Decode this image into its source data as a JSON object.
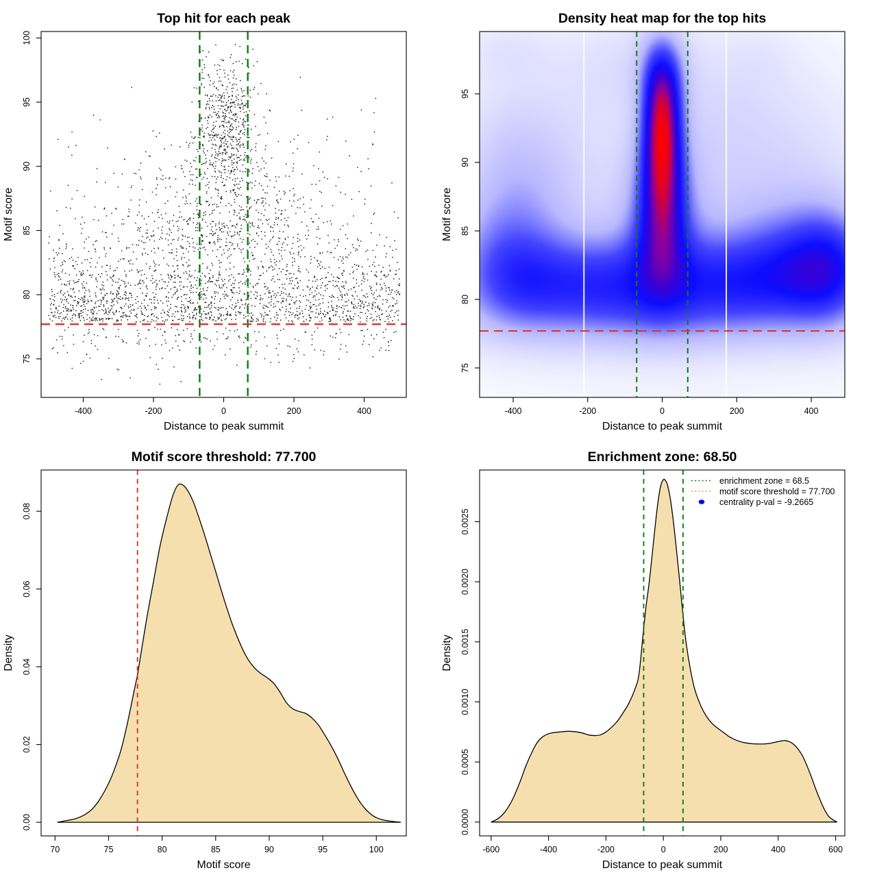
{
  "colors": {
    "red": "#e03228",
    "green": "#0f7b0f",
    "legend_red": "#f28b7d",
    "blue": "#0909e8",
    "wheat": "#f6dfae",
    "ink": "#000000"
  },
  "chart_data": [
    {
      "id": "top-hit-scatter",
      "type": "scatter",
      "title": "Top hit for each peak",
      "xlabel": "Distance to peak summit",
      "ylabel": "Motif score",
      "xlim": [
        -520,
        520
      ],
      "ylim": [
        72.0,
        100.5
      ],
      "xticks": [
        -400,
        -200,
        0,
        200,
        400
      ],
      "xtick_labels": [
        "-400",
        "-200",
        "0",
        "200",
        "400"
      ],
      "yticks": [
        75,
        80,
        85,
        90,
        95,
        100
      ],
      "ytick_labels": [
        "75",
        "80",
        "85",
        "90",
        "95",
        "100"
      ],
      "hline": {
        "value": 77.7,
        "color_key": "red"
      },
      "vlines": {
        "values": [
          -68.5,
          68.5
        ],
        "color_key": "green"
      },
      "points": {
        "seed": 1337,
        "color": "#000000",
        "clusters": [
          {
            "name": "background",
            "n": 1950,
            "x": {
              "dist": "uniform",
              "min": -500,
              "max": 500
            },
            "y": {
              "dist": "foldnormal",
              "base": 77.9,
              "scale": 3.3,
              "dir": 1,
              "clip_max": 99.8
            }
          },
          {
            "name": "central-cone",
            "n": 650,
            "x": {
              "dist": "normal",
              "mean": 0,
              "sd": 150,
              "clip_min": -500,
              "clip_max": 500
            },
            "y": {
              "dist": "foldnormal",
              "base": 83.5,
              "scale": 4.5,
              "dir": 1,
              "clip_max": 99.8
            }
          },
          {
            "name": "summit-core",
            "n": 520,
            "x": {
              "dist": "normal",
              "mean": 8,
              "sd": 42,
              "clip_min": -190,
              "clip_max": 200
            },
            "y": {
              "dist": "normal",
              "mean": 93.3,
              "sd": 2.7,
              "clip_min": 85,
              "clip_max": 99.6
            }
          },
          {
            "name": "below-threshold",
            "n": 200,
            "x": {
              "dist": "uniform",
              "min": -490,
              "max": 500
            },
            "y": {
              "dist": "foldnormal",
              "base": 77.5,
              "scale": 1.5,
              "dir": -1,
              "clip_min": 72.6
            }
          },
          {
            "name": "high-wings",
            "n": 70,
            "x": {
              "dist": "uniform",
              "min": -500,
              "max": 500
            },
            "y": {
              "dist": "normal",
              "mean": 90.5,
              "sd": 2.8,
              "clip_min": 86,
              "clip_max": 97
            }
          }
        ]
      }
    },
    {
      "id": "top-hit-heatmap",
      "type": "heatmap",
      "title": "Density heat map for the top hits",
      "xlabel": "Distance to peak summit",
      "ylabel": "Motif score",
      "xlim": [
        -490,
        490
      ],
      "ylim": [
        72.85,
        99.55
      ],
      "xticks": [
        -400,
        -200,
        0,
        200,
        400
      ],
      "xtick_labels": [
        "-400",
        "-200",
        "0",
        "200",
        "400"
      ],
      "yticks": [
        75,
        80,
        85,
        90,
        95
      ],
      "ytick_labels": [
        "75",
        "80",
        "85",
        "90",
        "95"
      ],
      "hline": {
        "value": 77.7,
        "color_key": "red"
      },
      "vlines": {
        "values": [
          -68.5,
          68.5
        ],
        "color_key": "green"
      },
      "white_gridlines": [
        -210,
        172
      ],
      "gamma": 0.75,
      "colormap": [
        [
          0,
          "#ffffff"
        ],
        [
          0.28,
          "#b8b8ff"
        ],
        [
          0.45,
          "#4646ff"
        ],
        [
          0.6,
          "#0d0dff"
        ],
        [
          0.72,
          "#3c00d2"
        ],
        [
          0.82,
          "#8800a0"
        ],
        [
          0.9,
          "#d2003c"
        ],
        [
          1,
          "#ff0000"
        ]
      ],
      "kernels": [
        {
          "x": -380,
          "y": 81.3,
          "sx": 110,
          "sy": 2.4,
          "w": 0.75
        },
        {
          "x": -180,
          "y": 81.2,
          "sx": 110,
          "sy": 2.2,
          "w": 0.6
        },
        {
          "x": 0,
          "y": 81.5,
          "sx": 120,
          "sy": 2.4,
          "w": 0.55
        },
        {
          "x": 190,
          "y": 81.3,
          "sx": 110,
          "sy": 2.2,
          "w": 0.6
        },
        {
          "x": 380,
          "y": 81.7,
          "sx": 110,
          "sy": 2.4,
          "w": 0.7
        },
        {
          "x": 460,
          "y": 82.3,
          "sx": 70,
          "sy": 2.6,
          "w": 0.45
        },
        {
          "x": 0,
          "y": 78.8,
          "sx": 300,
          "sy": 1.8,
          "w": 0.28
        },
        {
          "x": -430,
          "y": 84.5,
          "sx": 90,
          "sy": 3,
          "w": 0.3
        },
        {
          "x": -350,
          "y": 87,
          "sx": 100,
          "sy": 3.5,
          "w": 0.22
        },
        {
          "x": -420,
          "y": 91,
          "sx": 80,
          "sy": 3,
          "w": 0.12
        },
        {
          "x": 300,
          "y": 84,
          "sx": 120,
          "sy": 3,
          "w": 0.25
        },
        {
          "x": 430,
          "y": 83,
          "sx": 80,
          "sy": 3,
          "w": 0.3
        },
        {
          "x": 0,
          "y": 84.5,
          "sx": 42,
          "sy": 3,
          "w": 0.6
        },
        {
          "x": 0,
          "y": 88,
          "sx": 38,
          "sy": 3,
          "w": 0.85
        },
        {
          "x": 0,
          "y": 91,
          "sx": 34,
          "sy": 2.6,
          "w": 1.0
        },
        {
          "x": 0,
          "y": 93.6,
          "sx": 33,
          "sy": 2.4,
          "w": 1.15
        },
        {
          "x": 0,
          "y": 95.8,
          "sx": 36,
          "sy": 1.8,
          "w": 0.55
        },
        {
          "x": 0,
          "y": 97.8,
          "sx": 42,
          "sy": 1.8,
          "w": 0.3
        },
        {
          "x": -40,
          "y": 86,
          "sx": 60,
          "sy": 4,
          "w": 0.3
        },
        {
          "x": 40,
          "y": 86,
          "sx": 60,
          "sy": 4,
          "w": 0.3
        },
        {
          "x": -80,
          "y": 97,
          "sx": 120,
          "sy": 2.5,
          "w": 0.12
        },
        {
          "x": 150,
          "y": 93,
          "sx": 120,
          "sy": 4,
          "w": 0.12
        },
        {
          "x": -300,
          "y": 93,
          "sx": 120,
          "sy": 4,
          "w": 0.08
        },
        {
          "x": 350,
          "y": 90,
          "sx": 130,
          "sy": 5,
          "w": 0.1
        },
        {
          "x": -420,
          "y": 98,
          "sx": 80,
          "sy": 1.6,
          "w": 0.1
        },
        {
          "x": 260,
          "y": 97.5,
          "sx": 60,
          "sy": 1.5,
          "w": 0.05
        },
        {
          "x": 0,
          "y": 83,
          "sx": 400,
          "sy": 6,
          "w": 0.12
        },
        {
          "x": 0,
          "y": 90,
          "sx": 420,
          "sy": 8,
          "w": 0.06
        }
      ]
    },
    {
      "id": "motif-score-density",
      "type": "area",
      "title": "Motif score threshold: 77.700",
      "xlabel": "Motif score",
      "ylabel": "Density",
      "xlim": [
        68.7,
        102.8
      ],
      "ylim": [
        -0.0035,
        0.0906
      ],
      "xticks": [
        70,
        75,
        80,
        85,
        90,
        95,
        100
      ],
      "xtick_labels": [
        "70",
        "75",
        "80",
        "85",
        "90",
        "95",
        "100"
      ],
      "yticks": [
        0,
        0.02,
        0.04,
        0.06,
        0.08
      ],
      "ytick_labels": [
        "0.00",
        "0.02",
        "0.04",
        "0.06",
        "0.08"
      ],
      "vlines": {
        "values": [
          77.7
        ],
        "color_key": "red"
      },
      "fill_key": "wheat",
      "curve": [
        [
          70.2,
          0
        ],
        [
          71,
          0.0004
        ],
        [
          72,
          0.001
        ],
        [
          72.8,
          0.002
        ],
        [
          73.5,
          0.0035
        ],
        [
          74.2,
          0.006
        ],
        [
          75,
          0.01
        ],
        [
          75.6,
          0.014
        ],
        [
          76.2,
          0.019
        ],
        [
          76.8,
          0.026
        ],
        [
          77.4,
          0.034
        ],
        [
          77.7,
          0.038
        ],
        [
          78,
          0.043
        ],
        [
          78.6,
          0.053
        ],
        [
          79.2,
          0.062
        ],
        [
          79.8,
          0.071
        ],
        [
          80.4,
          0.078
        ],
        [
          81,
          0.084
        ],
        [
          81.5,
          0.0868
        ],
        [
          82,
          0.0866
        ],
        [
          82.5,
          0.0848
        ],
        [
          83,
          0.0818
        ],
        [
          83.6,
          0.077
        ],
        [
          84.2,
          0.0718
        ],
        [
          85,
          0.0645
        ],
        [
          85.8,
          0.0572
        ],
        [
          86.6,
          0.0506
        ],
        [
          87.4,
          0.0452
        ],
        [
          88,
          0.042
        ],
        [
          88.6,
          0.0398
        ],
        [
          89.2,
          0.0383
        ],
        [
          89.8,
          0.0372
        ],
        [
          90.4,
          0.0358
        ],
        [
          91,
          0.0335
        ],
        [
          91.6,
          0.0308
        ],
        [
          92.2,
          0.0292
        ],
        [
          92.8,
          0.0285
        ],
        [
          93.4,
          0.028
        ],
        [
          94,
          0.0268
        ],
        [
          94.6,
          0.025
        ],
        [
          95.2,
          0.0224
        ],
        [
          95.8,
          0.0196
        ],
        [
          96.4,
          0.0164
        ],
        [
          97,
          0.0128
        ],
        [
          97.6,
          0.0094
        ],
        [
          98.2,
          0.0064
        ],
        [
          98.8,
          0.004
        ],
        [
          99.4,
          0.0023
        ],
        [
          100,
          0.0012
        ],
        [
          100.8,
          0.0005
        ],
        [
          101.6,
          0.0002
        ],
        [
          102.3,
          0
        ]
      ]
    },
    {
      "id": "distance-density",
      "type": "area",
      "title": "Enrichment zone: 68.50",
      "xlabel": "Distance to peak summit",
      "ylabel": "Density",
      "xlim": [
        -640,
        632
      ],
      "ylim": [
        -0.000115,
        0.00293
      ],
      "xticks": [
        -600,
        -400,
        -200,
        0,
        200,
        400,
        600
      ],
      "xtick_labels": [
        "-600",
        "-400",
        "-200",
        "0",
        "200",
        "400",
        "600"
      ],
      "yticks": [
        0,
        0.0005,
        0.001,
        0.0015,
        0.002,
        0.0025
      ],
      "ytick_labels": [
        "0.0000",
        "0.0005",
        "0.0010",
        "0.0015",
        "0.0020",
        "0.0025"
      ],
      "vlines": {
        "values": [
          -68.5,
          68.5
        ],
        "color_key": "green"
      },
      "fill_key": "wheat",
      "legend": {
        "items": [
          {
            "symbol": "dotted-line",
            "color_key": "green",
            "label": "enrichment zone = 68.5"
          },
          {
            "symbol": "dotted-line",
            "color_key": "legend_red",
            "label": "motif score threshold = 77.700"
          },
          {
            "symbol": "dot",
            "color_key": "blue",
            "label": "centrality p-val = -9.2665"
          }
        ]
      },
      "curve": [
        [
          -600,
          0
        ],
        [
          -575,
          3e-05
        ],
        [
          -550,
          9e-05
        ],
        [
          -525,
          0.00019
        ],
        [
          -500,
          0.00033
        ],
        [
          -480,
          0.00046
        ],
        [
          -460,
          0.00057
        ],
        [
          -440,
          0.00066
        ],
        [
          -420,
          0.00071
        ],
        [
          -400,
          0.000735
        ],
        [
          -380,
          0.000745
        ],
        [
          -360,
          0.00075
        ],
        [
          -340,
          0.000755
        ],
        [
          -320,
          0.000755
        ],
        [
          -300,
          0.00075
        ],
        [
          -280,
          0.00074
        ],
        [
          -260,
          0.000725
        ],
        [
          -240,
          0.00072
        ],
        [
          -220,
          0.000725
        ],
        [
          -200,
          0.00075
        ],
        [
          -180,
          0.00079
        ],
        [
          -160,
          0.00084
        ],
        [
          -140,
          0.00091
        ],
        [
          -120,
          0.00099
        ],
        [
          -100,
          0.0011
        ],
        [
          -85,
          0.00123
        ],
        [
          -70,
          0.00158
        ],
        [
          -60,
          0.0018
        ],
        [
          -50,
          0.00198
        ],
        [
          -40,
          0.0022
        ],
        [
          -30,
          0.00243
        ],
        [
          -20,
          0.00264
        ],
        [
          -10,
          0.00279
        ],
        [
          0,
          0.00285
        ],
        [
          8,
          0.00284
        ],
        [
          15,
          0.0028
        ],
        [
          25,
          0.00268
        ],
        [
          35,
          0.0025
        ],
        [
          45,
          0.00228
        ],
        [
          55,
          0.00205
        ],
        [
          68.5,
          0.00172
        ],
        [
          80,
          0.00148
        ],
        [
          95,
          0.00126
        ],
        [
          110,
          0.0011
        ],
        [
          130,
          0.00097
        ],
        [
          150,
          0.00088
        ],
        [
          170,
          0.00082
        ],
        [
          190,
          0.00078
        ],
        [
          210,
          0.000745
        ],
        [
          230,
          0.00071
        ],
        [
          250,
          0.000685
        ],
        [
          270,
          0.000668
        ],
        [
          290,
          0.000658
        ],
        [
          310,
          0.000652
        ],
        [
          330,
          0.00065
        ],
        [
          350,
          0.00065
        ],
        [
          370,
          0.000655
        ],
        [
          390,
          0.000665
        ],
        [
          410,
          0.000675
        ],
        [
          425,
          0.000678
        ],
        [
          440,
          0.000668
        ],
        [
          455,
          0.000645
        ],
        [
          470,
          0.000605
        ],
        [
          485,
          0.00055
        ],
        [
          500,
          0.00047
        ],
        [
          515,
          0.00038
        ],
        [
          530,
          0.00028
        ],
        [
          545,
          0.00019
        ],
        [
          560,
          0.00011
        ],
        [
          575,
          5e-05
        ],
        [
          590,
          2e-05
        ],
        [
          605,
          0
        ]
      ]
    }
  ]
}
